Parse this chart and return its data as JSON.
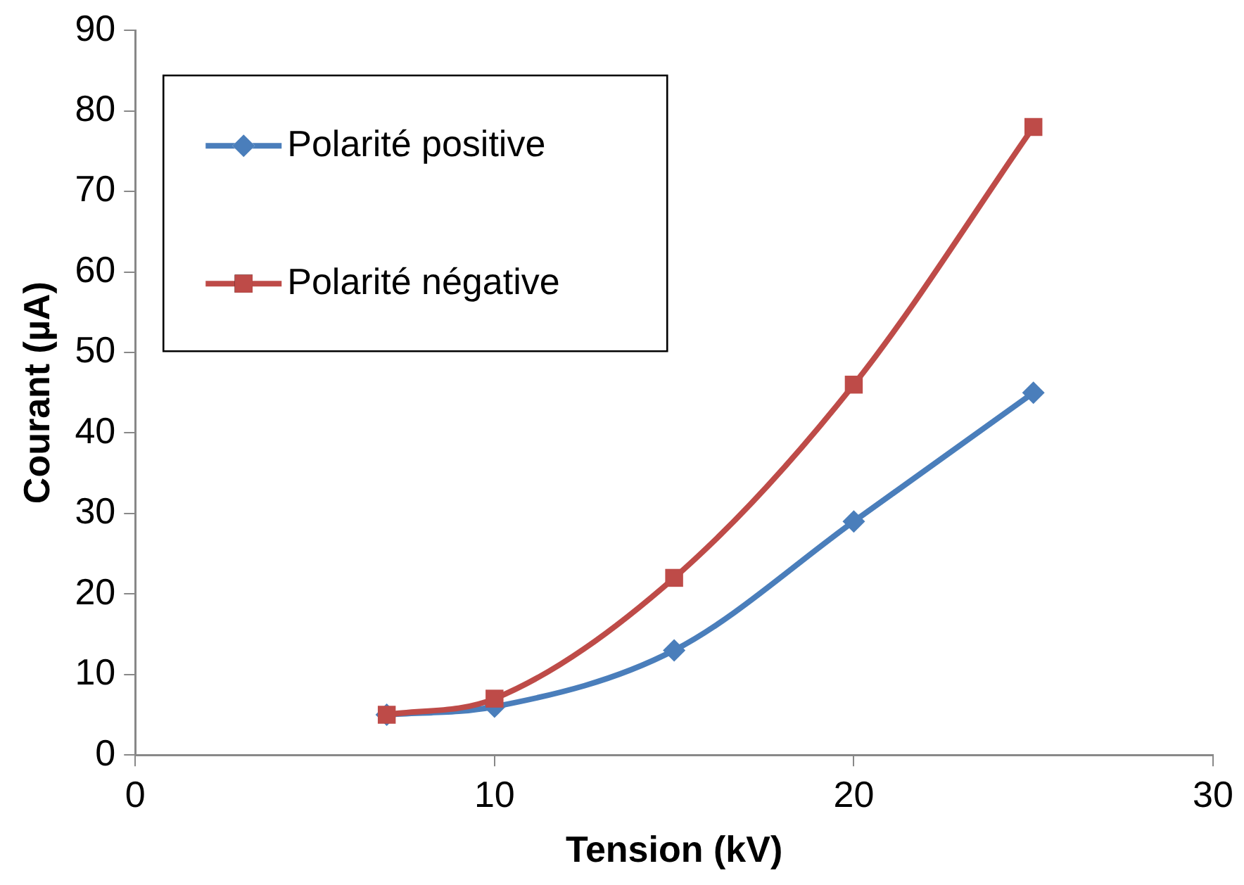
{
  "chart_data": {
    "type": "line",
    "xlabel": "Tension (kV)",
    "ylabel": "Courant (µA)",
    "xlim": [
      0,
      30
    ],
    "xticks": [
      0,
      10,
      20,
      30
    ],
    "ylim": [
      0,
      90
    ],
    "yticks": [
      0,
      10,
      20,
      30,
      40,
      50,
      60,
      70,
      80,
      90
    ],
    "grid": false,
    "legend": "top left",
    "line_style": "solid",
    "series": [
      {
        "name": "Polarité positive",
        "color": "#4a7ebb",
        "marker": "diamond",
        "x": [
          7,
          10,
          15,
          20,
          25
        ],
        "values": [
          5,
          6,
          13,
          29,
          45
        ]
      },
      {
        "name": "Polarité négative",
        "color": "#be4b48",
        "marker": "square",
        "x": [
          7,
          10,
          15,
          20,
          25
        ],
        "values": [
          5,
          7,
          22,
          46,
          78
        ]
      }
    ]
  }
}
